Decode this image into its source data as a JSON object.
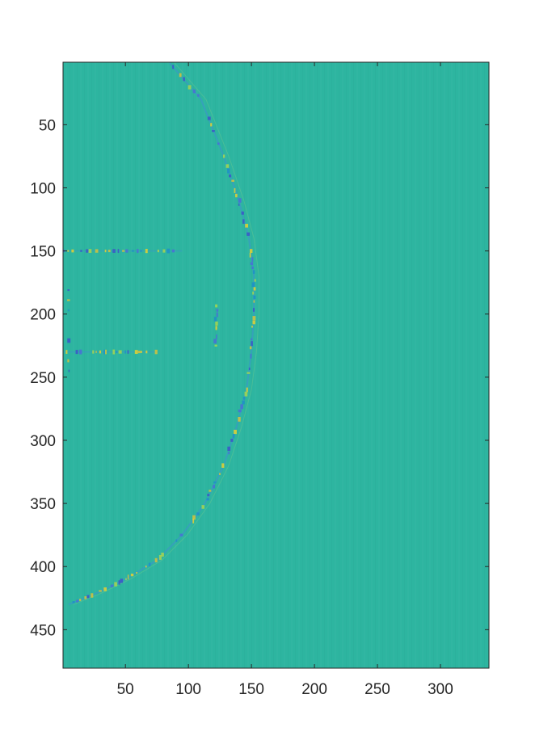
{
  "chart_data": {
    "type": "heatmap",
    "title": "",
    "xlabel": "",
    "ylabel": "",
    "xlim": [
      1,
      338
    ],
    "ylim": [
      1,
      480
    ],
    "y_direction": "reverse",
    "x_ticks": [
      50,
      100,
      150,
      200,
      250,
      300
    ],
    "y_ticks": [
      50,
      100,
      150,
      200,
      250,
      300,
      350,
      400,
      450
    ],
    "x_tick_labels": [
      "50",
      "100",
      "150",
      "200",
      "250",
      "300"
    ],
    "y_tick_labels": [
      "50",
      "100",
      "150",
      "200",
      "250",
      "300",
      "350",
      "400",
      "450"
    ],
    "colormap": "parula",
    "background_color": "#2db5a0",
    "colors": {
      "low": "#3c55c8",
      "mid": "#2db5a0",
      "high": "#e6d22e",
      "axis": "#262626"
    },
    "features": [
      {
        "kind": "arc",
        "path": [
          [
            85,
            1
          ],
          [
            110,
            30
          ],
          [
            128,
            75
          ],
          [
            140,
            110
          ],
          [
            148,
            140
          ],
          [
            152,
            170
          ],
          [
            152,
            200
          ],
          [
            150,
            230
          ],
          [
            146,
            260
          ],
          [
            138,
            290
          ],
          [
            128,
            320
          ],
          [
            113,
            350
          ],
          [
            95,
            375
          ],
          [
            75,
            395
          ],
          [
            50,
            410
          ],
          [
            25,
            422
          ],
          [
            5,
            430
          ]
        ]
      },
      {
        "kind": "horizontal-band",
        "y": 150,
        "x_start": 1,
        "x_end": 95
      },
      {
        "kind": "horizontal-band",
        "y": 230,
        "x_start": 1,
        "x_end": 75
      },
      {
        "kind": "vertical-segment",
        "x": 122,
        "y_start": 190,
        "y_end": 225
      },
      {
        "kind": "vertical-segment",
        "x": 5,
        "y_start": 165,
        "y_end": 245
      }
    ]
  }
}
